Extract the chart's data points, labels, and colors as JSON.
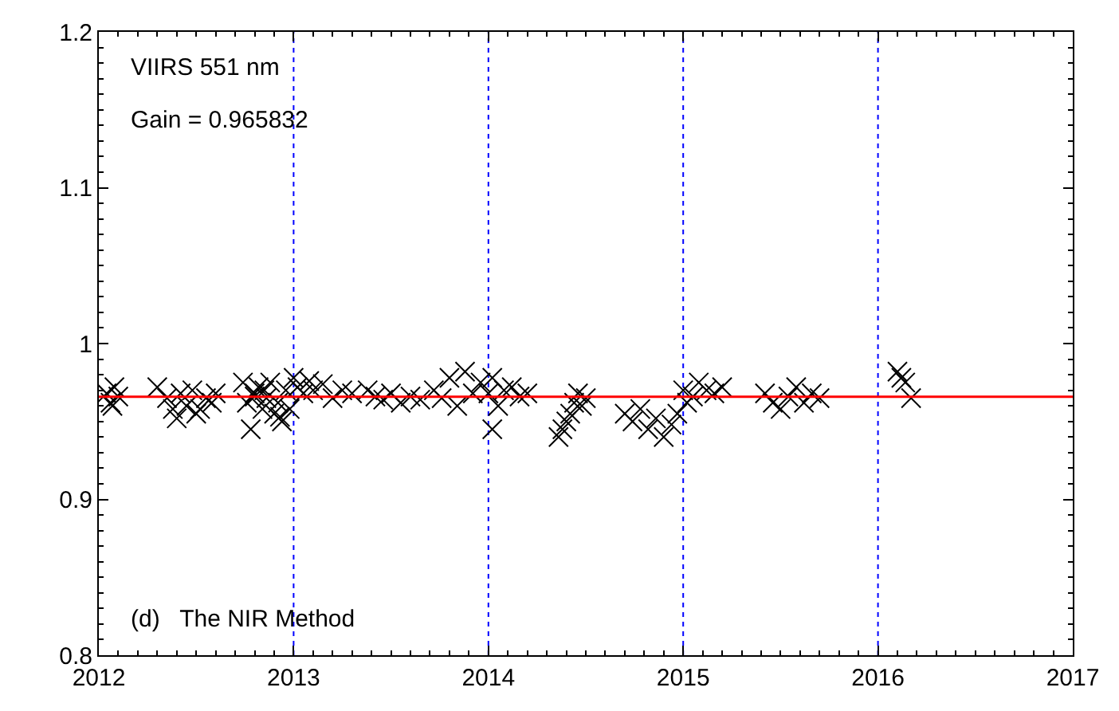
{
  "chart_data": {
    "type": "scatter",
    "marker": "cross",
    "grid": false,
    "xlim": [
      2012,
      2017
    ],
    "xticks": [
      2012,
      2013,
      2014,
      2015,
      2016,
      2017
    ],
    "ylim": [
      0.8,
      1.2
    ],
    "yticks": [
      0.8,
      0.9,
      {
        "value": 1.0,
        "label": "1"
      },
      1.1,
      1.2
    ],
    "series": [
      {
        "color": "#000000",
        "x": [
          2012.04,
          2012.06,
          2012.08,
          2012.1,
          2012.07,
          2012.3,
          2012.35,
          2012.38,
          2012.4,
          2012.42,
          2012.45,
          2012.48,
          2012.5,
          2012.55,
          2012.58,
          2012.6,
          2012.52,
          2012.74,
          2012.76,
          2012.78,
          2012.8,
          2012.82,
          2012.84,
          2012.86,
          2012.88,
          2012.9,
          2012.92,
          2012.94,
          2012.96,
          2012.98,
          2012.8,
          2012.85,
          2012.93,
          2013.0,
          2013.02,
          2013.05,
          2013.08,
          2013.1,
          2013.15,
          2013.2,
          2013.25,
          2013.3,
          2013.38,
          2013.42,
          2013.46,
          2013.5,
          2013.55,
          2013.6,
          2013.65,
          2013.72,
          2013.76,
          2013.8,
          2013.84,
          2013.88,
          2013.92,
          2013.96,
          2014.0,
          2014.02,
          2014.05,
          2014.08,
          2014.12,
          2014.16,
          2014.2,
          2014.02,
          2014.36,
          2014.38,
          2014.4,
          2014.42,
          2014.44,
          2014.46,
          2014.48,
          2014.5,
          2014.7,
          2014.74,
          2014.78,
          2014.82,
          2014.86,
          2014.9,
          2014.94,
          2014.97,
          2015.0,
          2015.02,
          2015.05,
          2015.08,
          2015.12,
          2015.16,
          2015.2,
          2015.42,
          2015.46,
          2015.5,
          2015.54,
          2015.58,
          2015.62,
          2015.66,
          2015.7,
          2016.1,
          2016.12,
          2016.14,
          2016.17
        ],
        "values": [
          0.968,
          0.962,
          0.972,
          0.966,
          0.96,
          0.972,
          0.965,
          0.958,
          0.952,
          0.968,
          0.96,
          0.97,
          0.955,
          0.965,
          0.962,
          0.968,
          0.958,
          0.975,
          0.962,
          0.945,
          0.968,
          0.972,
          0.958,
          0.965,
          0.975,
          0.955,
          0.962,
          0.95,
          0.97,
          0.958,
          0.966,
          0.97,
          0.953,
          0.978,
          0.972,
          0.968,
          0.976,
          0.97,
          0.974,
          0.965,
          0.97,
          0.968,
          0.97,
          0.966,
          0.964,
          0.968,
          0.962,
          0.966,
          0.964,
          0.97,
          0.965,
          0.978,
          0.96,
          0.982,
          0.968,
          0.975,
          0.968,
          0.978,
          0.96,
          0.97,
          0.972,
          0.966,
          0.968,
          0.945,
          0.94,
          0.945,
          0.95,
          0.955,
          0.962,
          0.968,
          0.96,
          0.965,
          0.955,
          0.95,
          0.958,
          0.945,
          0.952,
          0.94,
          0.948,
          0.955,
          0.97,
          0.962,
          0.966,
          0.975,
          0.97,
          0.968,
          0.972,
          0.968,
          0.962,
          0.958,
          0.966,
          0.972,
          0.962,
          0.968,
          0.965,
          0.982,
          0.978,
          0.975,
          0.965
        ]
      },
      {
        "type": "line",
        "color": "#ff0000",
        "marker": "none",
        "x": [
          2012,
          2017
        ],
        "values": [
          0.965832,
          0.965832
        ]
      }
    ],
    "ref_lines": [
      {
        "axis": "x",
        "value": 2013,
        "color": "#0000ff",
        "line_style": "dotted"
      },
      {
        "axis": "x",
        "value": 2014,
        "color": "#0000ff",
        "line_style": "dotted"
      },
      {
        "axis": "x",
        "value": 2015,
        "color": "#0000ff",
        "line_style": "dotted"
      },
      {
        "axis": "x",
        "value": 2016,
        "color": "#0000ff",
        "line_style": "dotted"
      }
    ],
    "annotations": [
      "VIIRS 551 nm",
      "Gain = 0.965832",
      "(d)   The NIR Method"
    ]
  }
}
